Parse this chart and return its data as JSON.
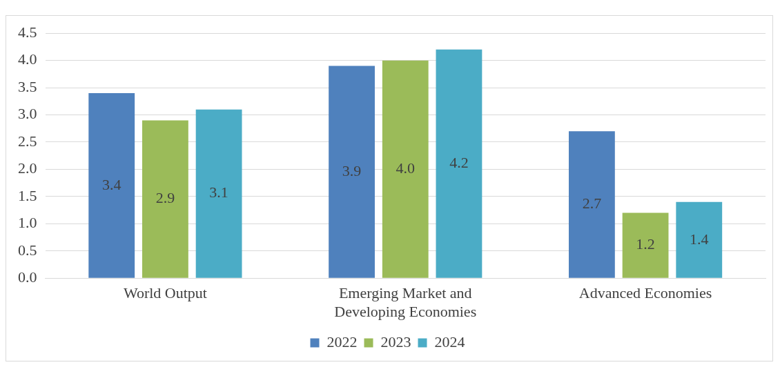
{
  "chart_data": {
    "type": "bar",
    "categories": [
      "World Output",
      "Emerging Market and Developing Economies",
      "Advanced Economies"
    ],
    "series": [
      {
        "name": "2022",
        "color": "#4f81bd",
        "values": [
          3.4,
          3.9,
          2.7
        ],
        "value_labels": [
          "3.4",
          "3.9",
          "2.7"
        ]
      },
      {
        "name": "2023",
        "color": "#9bbb59",
        "values": [
          2.9,
          4.0,
          1.2
        ],
        "value_labels": [
          "2.9",
          "4.0",
          "1.2"
        ]
      },
      {
        "name": "2024",
        "color": "#4bacc6",
        "values": [
          3.1,
          4.2,
          1.4
        ],
        "value_labels": [
          "3.1",
          "4.2",
          "1.4"
        ]
      }
    ],
    "ylim": [
      0,
      4.5
    ],
    "yticks": [
      {
        "value": 0,
        "label": "0.0"
      },
      {
        "value": 0.5,
        "label": "0.5"
      },
      {
        "value": 1,
        "label": "1.0"
      },
      {
        "value": 1.5,
        "label": "1.5"
      },
      {
        "value": 2,
        "label": "2.0"
      },
      {
        "value": 2.5,
        "label": "2.5"
      },
      {
        "value": 3,
        "label": "3.0"
      },
      {
        "value": 3.5,
        "label": "3.5"
      },
      {
        "value": 4,
        "label": "4.0"
      },
      {
        "value": 4.5,
        "label": "4.5"
      }
    ],
    "grid": "y",
    "legend": "bottom"
  }
}
